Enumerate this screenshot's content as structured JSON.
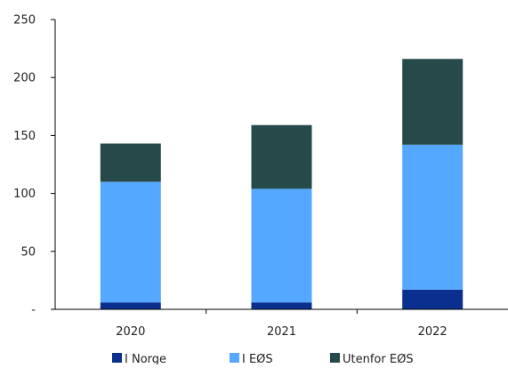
{
  "chart_data": {
    "type": "bar",
    "stacked": true,
    "categories": [
      "2020",
      "2021",
      "2022"
    ],
    "series": [
      {
        "name": "I Norge",
        "color": "#0a2f8f",
        "values": [
          6,
          6,
          17
        ]
      },
      {
        "name": "I EØS",
        "color": "#55a8ff",
        "values": [
          104,
          98,
          125
        ]
      },
      {
        "name": "Utenfor EØS",
        "color": "#264a4a",
        "values": [
          33,
          55,
          74
        ]
      }
    ],
    "title": "",
    "xlabel": "",
    "ylabel": "",
    "ylim": [
      0,
      250
    ],
    "y_ticks": [
      0,
      50,
      100,
      150,
      200,
      250
    ],
    "y_tick_labels": [
      "-",
      "50",
      "100",
      "150",
      "200",
      "250"
    ],
    "grid": false,
    "legend_position": "bottom"
  }
}
